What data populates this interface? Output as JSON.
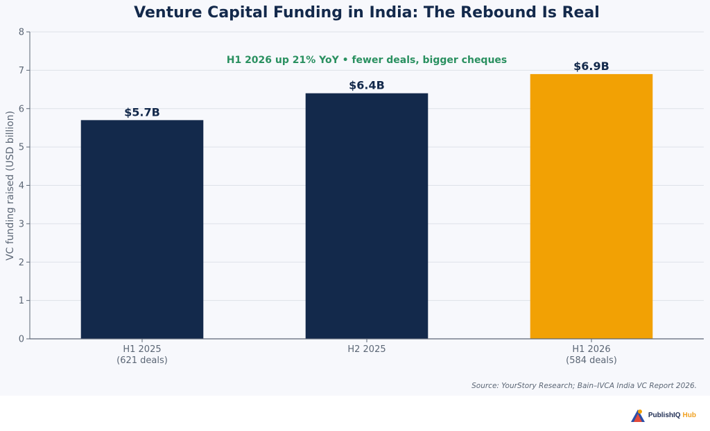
{
  "chart_data": {
    "type": "bar",
    "title": "Venture Capital Funding in India: The Rebound Is Real",
    "annotation": "H1 2026 up 21% YoY • fewer deals, bigger cheques",
    "ylabel": "VC funding raised (USD billion)",
    "xlabel": "",
    "ylim": [
      0,
      8
    ],
    "yticks": [
      0,
      1,
      2,
      3,
      4,
      5,
      6,
      7,
      8
    ],
    "categories": [
      {
        "line1": "H1 2025",
        "line2": "(621 deals)"
      },
      {
        "line1": "H2 2025",
        "line2": ""
      },
      {
        "line1": "H1 2026",
        "line2": "(584 deals)"
      }
    ],
    "values": [
      5.7,
      6.4,
      6.9
    ],
    "value_labels": [
      "$5.7B",
      "$6.4B",
      "$6.9B"
    ],
    "colors": [
      "#13294b",
      "#13294b",
      "#f2a104"
    ],
    "grid": true,
    "source": "Source: YourStory Research; Bain–IVCA India VC Report 2026."
  },
  "logo": {
    "text_a": "PublishIQ",
    "text_b": "Hub"
  }
}
